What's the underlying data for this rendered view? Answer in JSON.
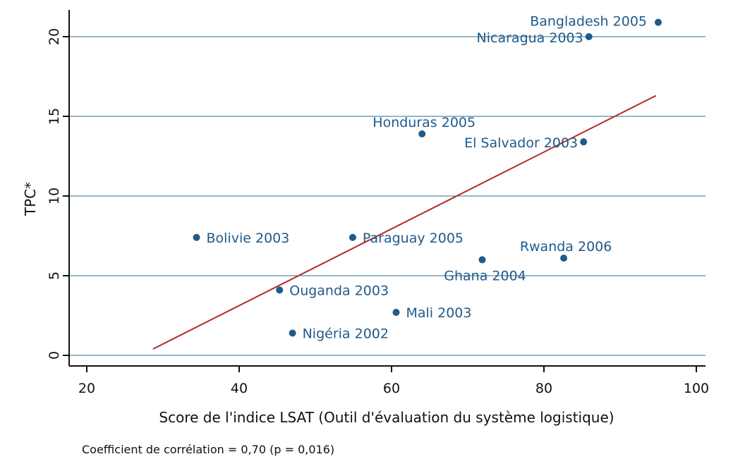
{
  "chart_data": {
    "type": "scatter",
    "title": "",
    "xlabel": "Score de l'indice LSAT (Outil d'évaluation du système logistique)",
    "ylabel": "TPC*",
    "xlim": [
      20,
      100
    ],
    "ylim": [
      0,
      21
    ],
    "x_ticks": [
      20,
      40,
      60,
      80,
      100
    ],
    "y_ticks": [
      0,
      5,
      10,
      15,
      20
    ],
    "grid": "horizontal",
    "points": [
      {
        "label": "Bangladesh 2005",
        "x": 95.0,
        "y": 20.9,
        "label_pos": "left-above"
      },
      {
        "label": "Nicaragua 2003",
        "x": 85.9,
        "y": 20.0,
        "label_pos": "left"
      },
      {
        "label": "Honduras 2005",
        "x": 64.0,
        "y": 13.9,
        "label_pos": "above"
      },
      {
        "label": "El Salvador 2003",
        "x": 85.2,
        "y": 13.4,
        "label_pos": "left"
      },
      {
        "label": "Bolivie 2003",
        "x": 34.4,
        "y": 7.4,
        "label_pos": "right"
      },
      {
        "label": "Paraguay 2005",
        "x": 54.9,
        "y": 7.4,
        "label_pos": "right"
      },
      {
        "label": "Rwanda 2006",
        "x": 82.6,
        "y": 6.1,
        "label_pos": "above"
      },
      {
        "label": "Ghana 2004",
        "x": 71.9,
        "y": 6.0,
        "label_pos": "below"
      },
      {
        "label": "Ouganda 2003",
        "x": 45.3,
        "y": 4.1,
        "label_pos": "right"
      },
      {
        "label": "Mali 2003",
        "x": 60.6,
        "y": 2.7,
        "label_pos": "right"
      },
      {
        "label": "Nigéria 2002",
        "x": 47.0,
        "y": 1.4,
        "label_pos": "right"
      }
    ],
    "fit_line": {
      "x": [
        28.7,
        94.7
      ],
      "y": [
        0.4,
        16.3
      ]
    },
    "colors": {
      "points": "#1f5a8a",
      "labels": "#1f5a8a",
      "fit_line": "#b22a2a",
      "grid": "#2a6f90"
    }
  },
  "note": "Coefficient de corrélation =  0,70 (p = 0,016)"
}
